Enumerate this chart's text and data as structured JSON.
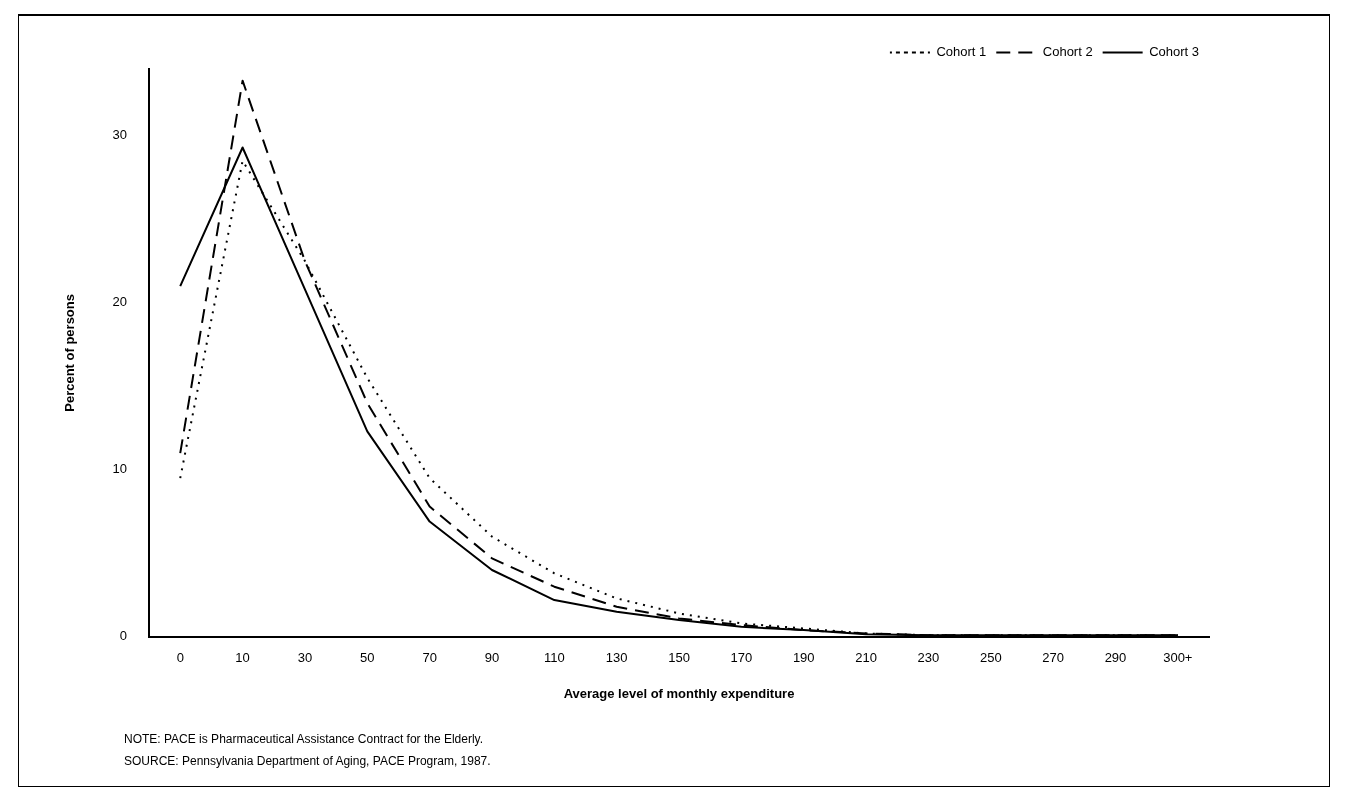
{
  "chart_data": {
    "type": "line",
    "xlabel": "Average level of monthly expenditure",
    "ylabel": "Percent of persons",
    "categories": [
      "0",
      "10",
      "30",
      "50",
      "70",
      "90",
      "110",
      "130",
      "150",
      "170",
      "190",
      "210",
      "230",
      "250",
      "270",
      "290",
      "300+"
    ],
    "series": [
      {
        "name": "Cohort 1",
        "color": "#000000",
        "line_style": "dotted",
        "values": [
          9.5,
          28.5,
          22.5,
          15.5,
          9.5,
          6.0,
          3.8,
          2.3,
          1.4,
          0.8,
          0.5,
          0.2,
          0.1,
          0.1,
          0.1,
          0.1,
          0.1
        ]
      },
      {
        "name": "Cohort 2",
        "color": "#000000",
        "line_style": "dashed",
        "values": [
          11,
          33.3,
          22.5,
          14,
          7.8,
          4.7,
          3.0,
          1.8,
          1.1,
          0.7,
          0.4,
          0.2,
          0.1,
          0.1,
          0.1,
          0.1,
          0.1
        ]
      },
      {
        "name": "Cohort 3",
        "color": "#000000",
        "line_style": "solid",
        "values": [
          21,
          29.3,
          20.8,
          12.3,
          6.9,
          4.0,
          2.2,
          1.5,
          1.0,
          0.6,
          0.4,
          0.15,
          0.1,
          0.1,
          0.1,
          0.1,
          0.1
        ]
      }
    ],
    "ylim": [
      0,
      34
    ],
    "yticks": [
      0,
      10,
      20,
      30
    ],
    "grid": false,
    "legend": "top right",
    "marker": "none",
    "annotations": [
      "NOTE:  PACE is Pharmaceutical Assistance Contract for the Elderly.",
      "SOURCE:  Pennsylvania Department of Aging, PACE Program, 1987."
    ]
  }
}
